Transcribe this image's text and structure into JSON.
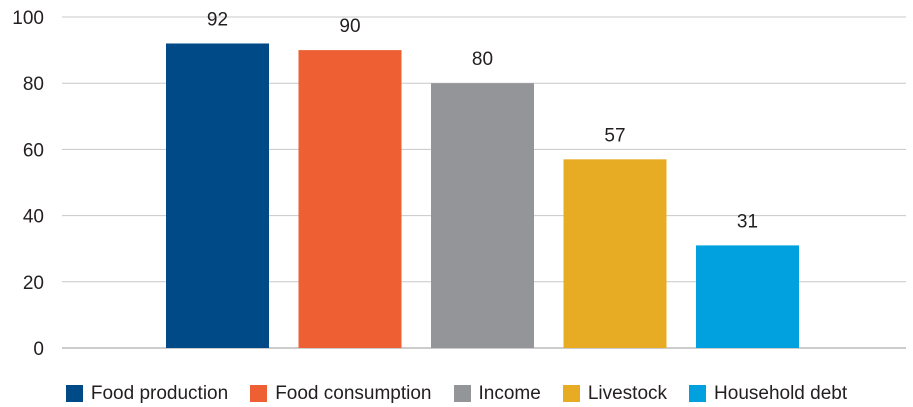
{
  "chart_data": {
    "type": "bar",
    "categories": [
      "Food production",
      "Food consumption",
      "Income",
      "Livestock",
      "Household debt"
    ],
    "values": [
      92,
      90,
      80,
      57,
      31
    ],
    "data_labels": [
      "92",
      "90",
      "80",
      "57",
      "31"
    ],
    "colors": [
      "#004a87",
      "#ee6033",
      "#939598",
      "#e8ab24",
      "#00a1de"
    ],
    "ylim": [
      0,
      100
    ],
    "yticks": [
      0,
      20,
      40,
      60,
      80,
      100
    ],
    "ytick_labels": [
      "0",
      "20",
      "40",
      "60",
      "80",
      "100"
    ],
    "grid": true,
    "legend_position": "bottom",
    "title": "",
    "xlabel": "",
    "ylabel": ""
  },
  "legend": {
    "items": [
      {
        "label": "Food production",
        "color": "#004a87"
      },
      {
        "label": "Food consumption",
        "color": "#ee6033"
      },
      {
        "label": "Income",
        "color": "#939598"
      },
      {
        "label": "Livestock",
        "color": "#e8ab24"
      },
      {
        "label": "Household debt",
        "color": "#00a1de"
      }
    ]
  }
}
